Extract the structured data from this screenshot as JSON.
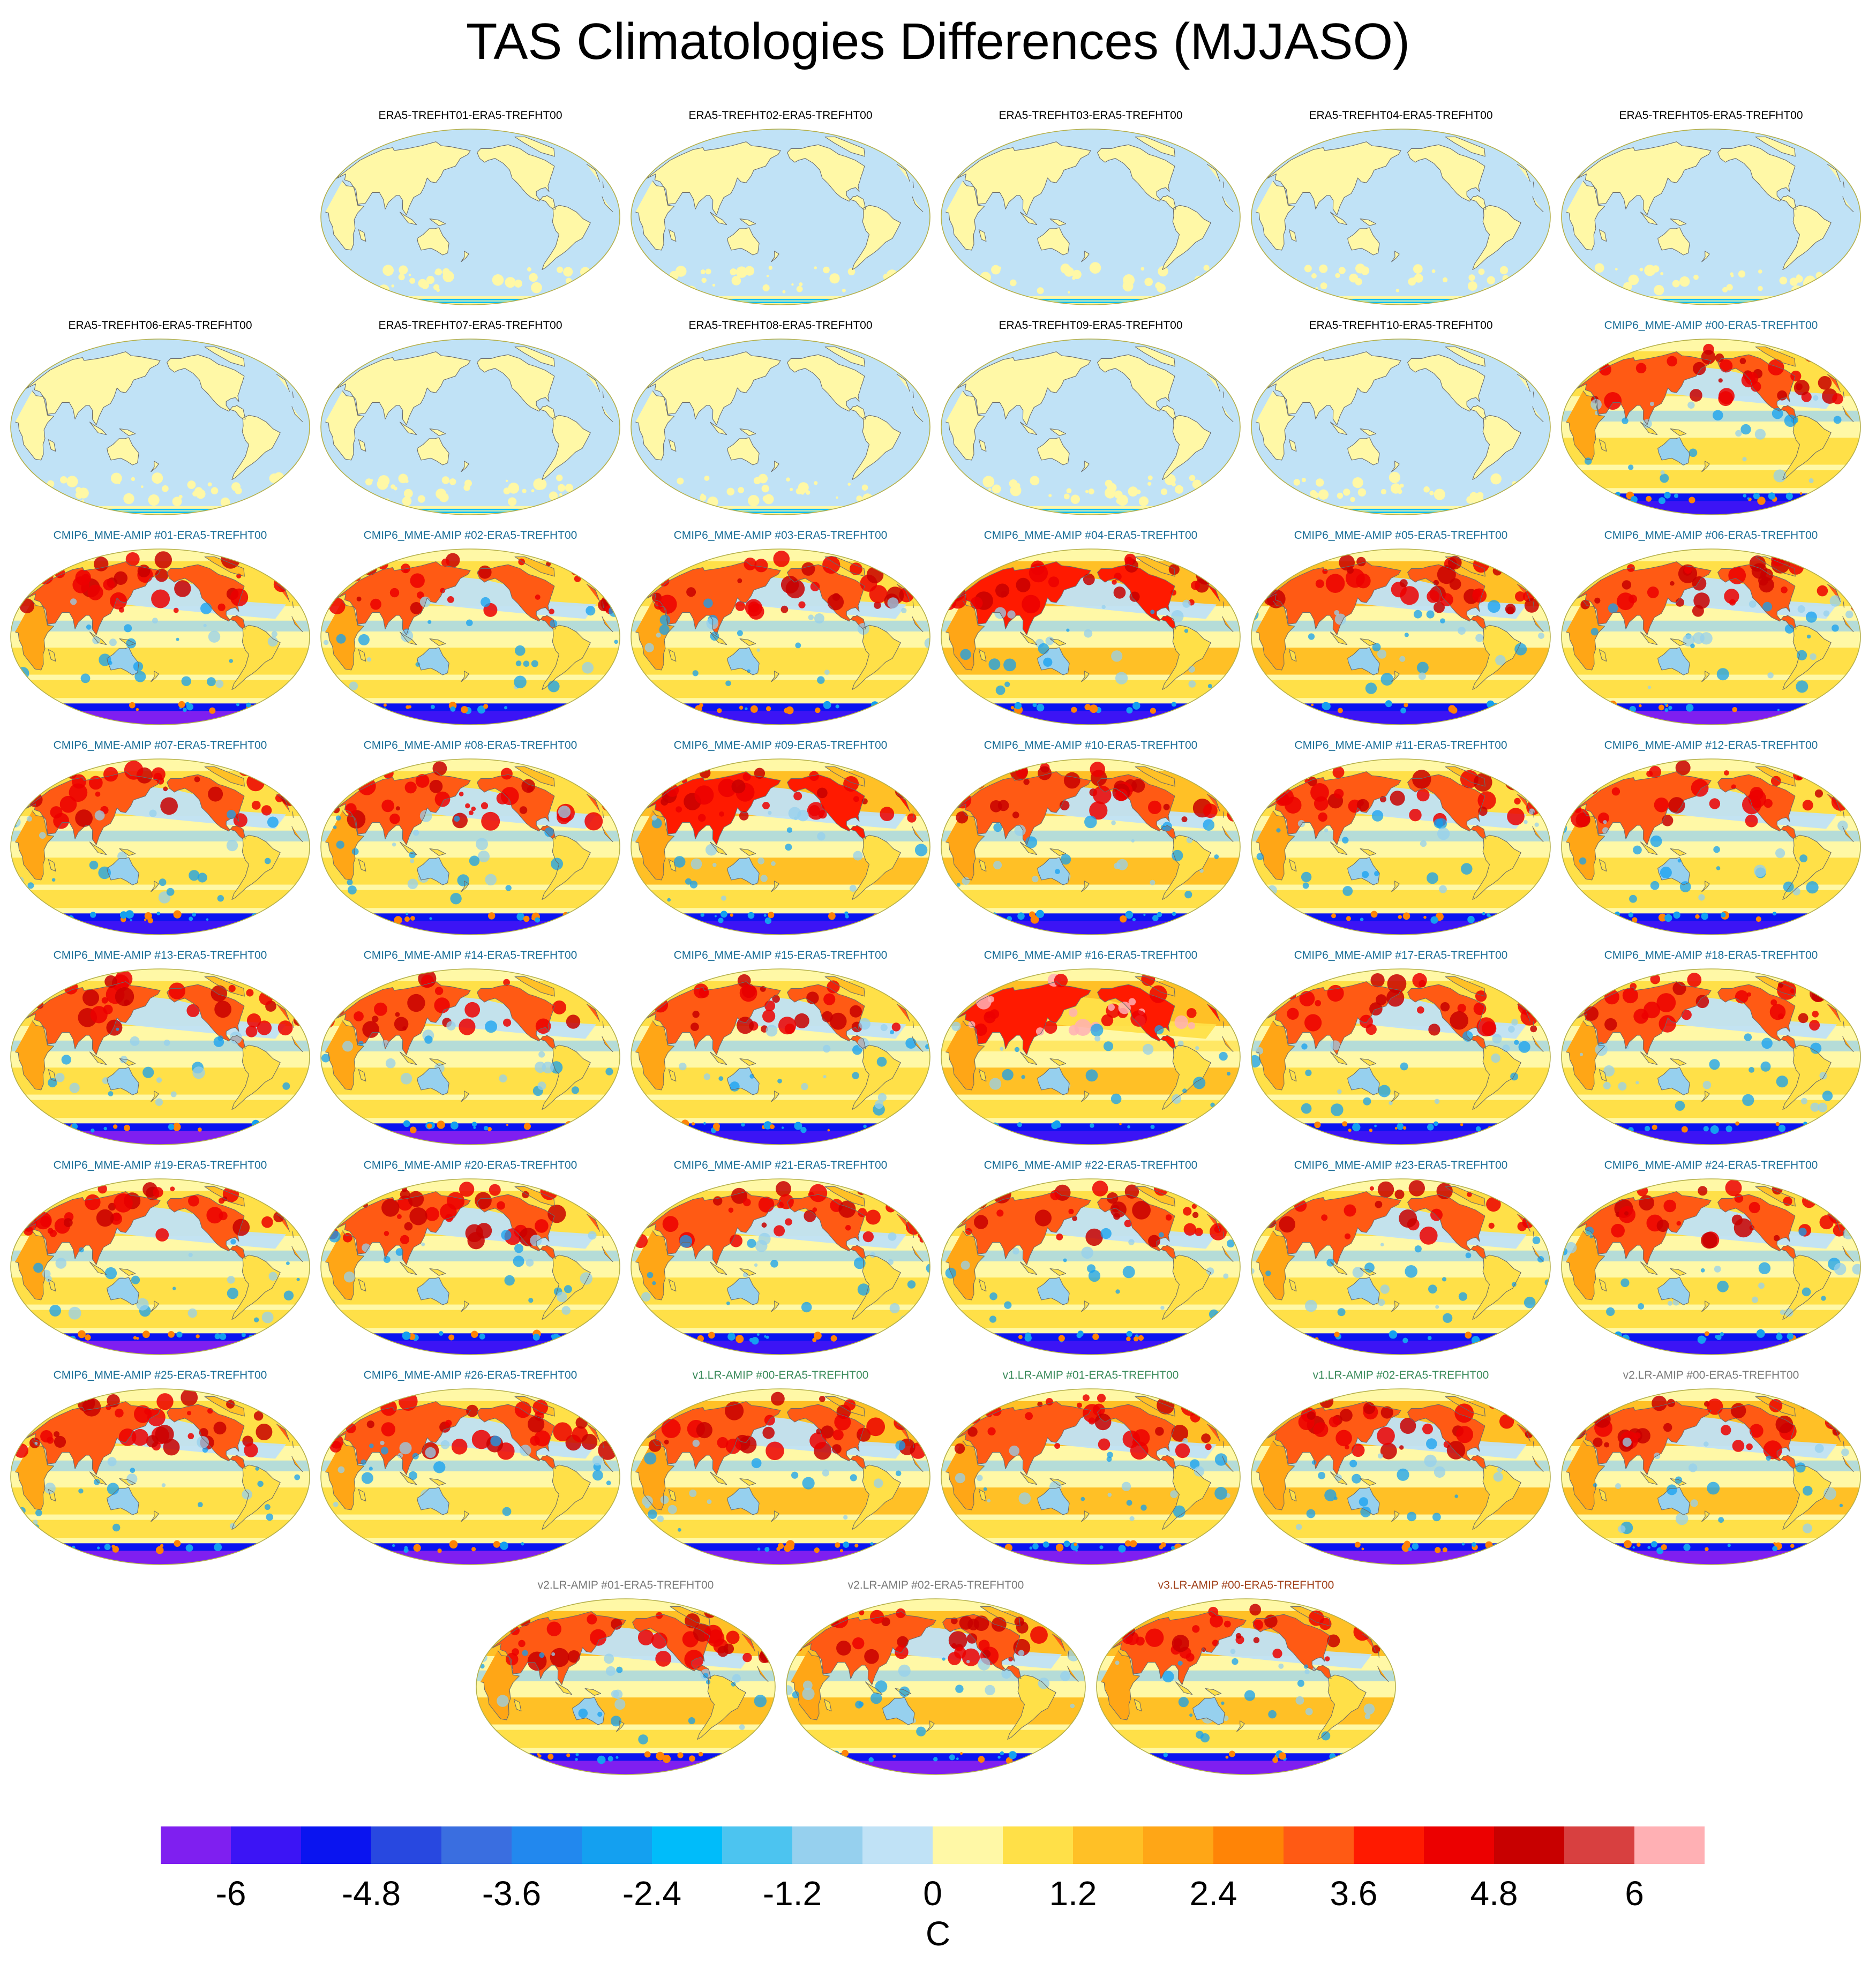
{
  "title": "TAS Climatologies Differences (MJJASO)",
  "colorbar": {
    "colors": [
      "#7f1ff0",
      "#3c14f5",
      "#0a14f0",
      "#2848e0",
      "#3a6ee0",
      "#2288ee",
      "#14a0f0",
      "#00bcfa",
      "#4cc4f0",
      "#96d0ee",
      "#c0e2f6",
      "#fff8a6",
      "#ffe048",
      "#ffc026",
      "#ffa616",
      "#ff8406",
      "#ff5a14",
      "#ff1a00",
      "#ec0000",
      "#c80000",
      "#d84040",
      "#ffb0b4"
    ],
    "tick_labels": [
      "-6",
      "-4.8",
      "-3.6",
      "-2.4",
      "-1.2",
      "0",
      "1.2",
      "2.4",
      "3.6",
      "4.8",
      "6"
    ],
    "units": "C"
  },
  "title_colors": {
    "era5": "#000000",
    "cmip6": "#1a6e98",
    "v1": "#3a8a5a",
    "v2": "#7a7a7a",
    "v3": "#a0401a"
  },
  "panels": [
    {
      "title": "ERA5-TREFHT01-ERA5-TREFHT00",
      "group": "era5",
      "warm": 0.0,
      "polar": 0
    },
    {
      "title": "ERA5-TREFHT02-ERA5-TREFHT00",
      "group": "era5",
      "warm": 0.0,
      "polar": 0
    },
    {
      "title": "ERA5-TREFHT03-ERA5-TREFHT00",
      "group": "era5",
      "warm": 0.0,
      "polar": 0
    },
    {
      "title": "ERA5-TREFHT04-ERA5-TREFHT00",
      "group": "era5",
      "warm": 0.0,
      "polar": 0
    },
    {
      "title": "ERA5-TREFHT05-ERA5-TREFHT00",
      "group": "era5",
      "warm": 0.0,
      "polar": 0
    },
    {
      "title": "ERA5-TREFHT06-ERA5-TREFHT00",
      "group": "era5",
      "warm": 0.0,
      "polar": 0
    },
    {
      "title": "ERA5-TREFHT07-ERA5-TREFHT00",
      "group": "era5",
      "warm": 0.0,
      "polar": 0
    },
    {
      "title": "ERA5-TREFHT08-ERA5-TREFHT00",
      "group": "era5",
      "warm": 0.0,
      "polar": 0
    },
    {
      "title": "ERA5-TREFHT09-ERA5-TREFHT00",
      "group": "era5",
      "warm": 0.0,
      "polar": 0
    },
    {
      "title": "ERA5-TREFHT10-ERA5-TREFHT00",
      "group": "era5",
      "warm": 0.0,
      "polar": 0
    },
    {
      "title": "CMIP6_MME-AMIP  #00-ERA5-TREFHT00",
      "group": "cmip6",
      "warm": 0.6,
      "polar": 1
    },
    {
      "title": "CMIP6_MME-AMIP  #01-ERA5-TREFHT00",
      "group": "cmip6",
      "warm": 0.7,
      "polar": 2
    },
    {
      "title": "CMIP6_MME-AMIP  #02-ERA5-TREFHT00",
      "group": "cmip6",
      "warm": 0.6,
      "polar": 1
    },
    {
      "title": "CMIP6_MME-AMIP  #03-ERA5-TREFHT00",
      "group": "cmip6",
      "warm": 0.7,
      "polar": 1
    },
    {
      "title": "CMIP6_MME-AMIP  #04-ERA5-TREFHT00",
      "group": "cmip6",
      "warm": 0.8,
      "polar": 1
    },
    {
      "title": "CMIP6_MME-AMIP  #05-ERA5-TREFHT00",
      "group": "cmip6",
      "warm": 0.75,
      "polar": 1
    },
    {
      "title": "CMIP6_MME-AMIP  #06-ERA5-TREFHT00",
      "group": "cmip6",
      "warm": 0.6,
      "polar": 2
    },
    {
      "title": "CMIP6_MME-AMIP  #07-ERA5-TREFHT00",
      "group": "cmip6",
      "warm": 0.65,
      "polar": 1
    },
    {
      "title": "CMIP6_MME-AMIP  #08-ERA5-TREFHT00",
      "group": "cmip6",
      "warm": 0.7,
      "polar": 1
    },
    {
      "title": "CMIP6_MME-AMIP  #09-ERA5-TREFHT00",
      "group": "cmip6",
      "warm": 0.8,
      "polar": 1
    },
    {
      "title": "CMIP6_MME-AMIP  #10-ERA5-TREFHT00",
      "group": "cmip6",
      "warm": 0.75,
      "polar": 1
    },
    {
      "title": "CMIP6_MME-AMIP  #11-ERA5-TREFHT00",
      "group": "cmip6",
      "warm": 0.45,
      "polar": 1
    },
    {
      "title": "CMIP6_MME-AMIP  #12-ERA5-TREFHT00",
      "group": "cmip6",
      "warm": 0.55,
      "polar": 1
    },
    {
      "title": "CMIP6_MME-AMIP  #13-ERA5-TREFHT00",
      "group": "cmip6",
      "warm": 0.7,
      "polar": 2
    },
    {
      "title": "CMIP6_MME-AMIP  #14-ERA5-TREFHT00",
      "group": "cmip6",
      "warm": 0.7,
      "polar": 2
    },
    {
      "title": "CMIP6_MME-AMIP  #15-ERA5-TREFHT00",
      "group": "cmip6",
      "warm": 0.6,
      "polar": 1
    },
    {
      "title": "CMIP6_MME-AMIP  #16-ERA5-TREFHT00",
      "group": "cmip6",
      "warm": 1.0,
      "polar": 1
    },
    {
      "title": "CMIP6_MME-AMIP  #17-ERA5-TREFHT00",
      "group": "cmip6",
      "warm": 0.6,
      "polar": 1
    },
    {
      "title": "CMIP6_MME-AMIP  #18-ERA5-TREFHT00",
      "group": "cmip6",
      "warm": 0.6,
      "polar": 1
    },
    {
      "title": "CMIP6_MME-AMIP  #19-ERA5-TREFHT00",
      "group": "cmip6",
      "warm": 0.6,
      "polar": 2
    },
    {
      "title": "CMIP6_MME-AMIP  #20-ERA5-TREFHT00",
      "group": "cmip6",
      "warm": 0.55,
      "polar": 1
    },
    {
      "title": "CMIP6_MME-AMIP  #21-ERA5-TREFHT00",
      "group": "cmip6",
      "warm": 0.6,
      "polar": 1
    },
    {
      "title": "CMIP6_MME-AMIP  #22-ERA5-TREFHT00",
      "group": "cmip6",
      "warm": 0.6,
      "polar": 1
    },
    {
      "title": "CMIP6_MME-AMIP  #23-ERA5-TREFHT00",
      "group": "cmip6",
      "warm": 0.6,
      "polar": 1
    },
    {
      "title": "CMIP6_MME-AMIP  #24-ERA5-TREFHT00",
      "group": "cmip6",
      "warm": 0.55,
      "polar": 1
    },
    {
      "title": "CMIP6_MME-AMIP  #25-ERA5-TREFHT00",
      "group": "cmip6",
      "warm": 0.65,
      "polar": 2
    },
    {
      "title": "CMIP6_MME-AMIP  #26-ERA5-TREFHT00",
      "group": "cmip6",
      "warm": 0.65,
      "polar": 2
    },
    {
      "title": "v1.LR-AMIP  #00-ERA5-TREFHT00",
      "group": "v1",
      "warm": 0.75,
      "polar": 2
    },
    {
      "title": "v1.LR-AMIP  #01-ERA5-TREFHT00",
      "group": "v1",
      "warm": 0.75,
      "polar": 2
    },
    {
      "title": "v1.LR-AMIP  #02-ERA5-TREFHT00",
      "group": "v1",
      "warm": 0.75,
      "polar": 2
    },
    {
      "title": "v2.LR-AMIP  #00-ERA5-TREFHT00",
      "group": "v2",
      "warm": 0.75,
      "polar": 2
    },
    {
      "title": "v2.LR-AMIP  #01-ERA5-TREFHT00",
      "group": "v2",
      "warm": 0.75,
      "polar": 2
    },
    {
      "title": "v2.LR-AMIP  #02-ERA5-TREFHT00",
      "group": "v2",
      "warm": 0.75,
      "polar": 2
    },
    {
      "title": "v3.LR-AMIP  #00-ERA5-TREFHT00",
      "group": "v3",
      "warm": 0.75,
      "polar": 2
    }
  ]
}
